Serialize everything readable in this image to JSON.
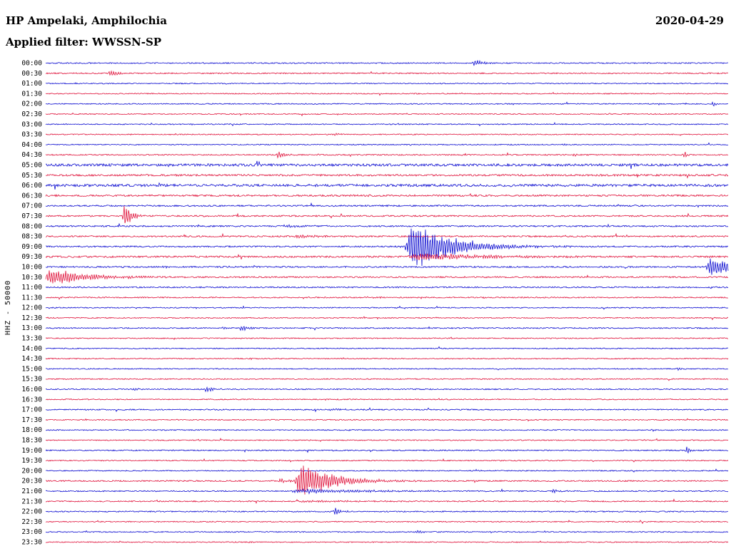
{
  "header": {
    "station_title": "HP Ampelaki, Amphilochia",
    "date": "2020-04-29",
    "filter_label": "Applied filter: WWSSN-SP"
  },
  "axis": {
    "left_label": "HHZ - 50000"
  },
  "chart_data": {
    "type": "line",
    "title": "HP Ampelaki, Amphilochia",
    "subtitle": "Applied filter: WWSSN-SP",
    "date": "2020-04-29",
    "ylabel": "HHZ - 50000",
    "row_minutes": 30,
    "row_count": 48,
    "legend": "alternating trace colors, one row per 30 minutes",
    "colors": {
      "blue": "#0b0bd0",
      "red": "#df1039",
      "labels": "#000000"
    },
    "rows": [
      {
        "t": "00:00",
        "noise": 0.8,
        "events": [
          [
            0.628,
            6,
            0.01
          ]
        ]
      },
      {
        "t": "00:30",
        "noise": 0.8,
        "events": [
          [
            0.095,
            5,
            0.01
          ]
        ]
      },
      {
        "t": "01:00",
        "noise": 0.7,
        "events": []
      },
      {
        "t": "01:30",
        "noise": 0.7,
        "events": []
      },
      {
        "t": "02:00",
        "noise": 0.7,
        "events": [
          [
            0.978,
            5,
            0.004
          ]
        ]
      },
      {
        "t": "02:30",
        "noise": 0.7,
        "events": []
      },
      {
        "t": "03:00",
        "noise": 0.7,
        "events": []
      },
      {
        "t": "03:30",
        "noise": 0.7,
        "events": [
          [
            0.425,
            2,
            0.006
          ]
        ]
      },
      {
        "t": "04:00",
        "noise": 0.7,
        "events": [
          [
            0.76,
            1.5,
            0.005
          ]
        ]
      },
      {
        "t": "04:30",
        "noise": 0.8,
        "events": [
          [
            0.341,
            5,
            0.01
          ],
          [
            0.775,
            2.5,
            0.004
          ],
          [
            0.937,
            6,
            0.003
          ]
        ]
      },
      {
        "t": "05:00",
        "noise": 1.7,
        "events": []
      },
      {
        "t": "05:30",
        "noise": 1.3,
        "events": []
      },
      {
        "t": "06:00",
        "noise": 1.7,
        "events": []
      },
      {
        "t": "06:30",
        "noise": 1.2,
        "events": []
      },
      {
        "t": "07:00",
        "noise": 1.0,
        "events": []
      },
      {
        "t": "07:30",
        "noise": 1.0,
        "events": [
          [
            0.116,
            22,
            0.009
          ]
        ]
      },
      {
        "t": "08:00",
        "noise": 1.0,
        "events": [
          [
            0.35,
            1.8,
            0.03
          ]
        ]
      },
      {
        "t": "08:30",
        "noise": 1.0,
        "events": [
          [
            0.37,
            2.2,
            0.04
          ]
        ]
      },
      {
        "t": "09:00",
        "noise": 1.0,
        "events": [
          [
            0.54,
            36,
            0.055
          ]
        ]
      },
      {
        "t": "09:30",
        "noise": 1.2,
        "events": [
          [
            0.55,
            5,
            0.09
          ]
        ]
      },
      {
        "t": "10:00",
        "noise": 1.0,
        "events": [
          [
            0.17,
            2,
            0.008
          ],
          [
            0.975,
            16,
            0.03
          ]
        ]
      },
      {
        "t": "10:30",
        "noise": 1.0,
        "events": [
          [
            0.01,
            13,
            0.05
          ]
        ]
      },
      {
        "t": "11:00",
        "noise": 0.9,
        "events": []
      },
      {
        "t": "11:30",
        "noise": 0.8,
        "events": [
          [
            0.47,
            1.5,
            0.02
          ]
        ]
      },
      {
        "t": "12:00",
        "noise": 0.7,
        "events": []
      },
      {
        "t": "12:30",
        "noise": 0.7,
        "events": [
          [
            0.487,
            2.2,
            0.004
          ]
        ]
      },
      {
        "t": "13:00",
        "noise": 0.8,
        "events": [
          [
            0.26,
            2.5,
            0.006
          ],
          [
            0.287,
            5,
            0.012
          ]
        ]
      },
      {
        "t": "13:30",
        "noise": 0.7,
        "events": []
      },
      {
        "t": "14:00",
        "noise": 0.7,
        "events": []
      },
      {
        "t": "14:30",
        "noise": 0.7,
        "events": [
          [
            0.3,
            1.3,
            0.006
          ]
        ]
      },
      {
        "t": "15:00",
        "noise": 0.7,
        "events": [
          [
            0.927,
            2.5,
            0.003
          ]
        ]
      },
      {
        "t": "15:30",
        "noise": 0.7,
        "events": []
      },
      {
        "t": "16:00",
        "noise": 0.8,
        "events": [
          [
            0.13,
            1.8,
            0.005
          ],
          [
            0.236,
            4,
            0.012
          ]
        ]
      },
      {
        "t": "16:30",
        "noise": 0.7,
        "events": []
      },
      {
        "t": "17:00",
        "noise": 0.8,
        "events": [
          [
            0.42,
            1.4,
            0.02
          ]
        ]
      },
      {
        "t": "17:30",
        "noise": 0.7,
        "events": []
      },
      {
        "t": "18:00",
        "noise": 0.7,
        "events": [
          [
            0.89,
            1.6,
            0.004
          ]
        ]
      },
      {
        "t": "18:30",
        "noise": 0.7,
        "events": []
      },
      {
        "t": "19:00",
        "noise": 0.8,
        "events": [
          [
            0.94,
            6,
            0.006
          ]
        ]
      },
      {
        "t": "19:30",
        "noise": 0.7,
        "events": []
      },
      {
        "t": "20:00",
        "noise": 0.7,
        "events": [
          [
            0.63,
            1.4,
            0.01
          ]
        ]
      },
      {
        "t": "20:30",
        "noise": 0.9,
        "events": [
          [
            0.345,
            4,
            0.008
          ],
          [
            0.375,
            26,
            0.045
          ]
        ]
      },
      {
        "t": "21:00",
        "noise": 0.8,
        "events": [
          [
            0.38,
            3,
            0.1
          ],
          [
            0.745,
            3,
            0.005
          ]
        ]
      },
      {
        "t": "21:30",
        "noise": 0.8,
        "events": [
          [
            0.38,
            1.5,
            0.08
          ]
        ]
      },
      {
        "t": "22:00",
        "noise": 0.8,
        "events": [
          [
            0.425,
            7,
            0.008
          ]
        ]
      },
      {
        "t": "22:30",
        "noise": 0.7,
        "events": []
      },
      {
        "t": "23:00",
        "noise": 0.7,
        "events": [
          [
            0.545,
            3,
            0.008
          ]
        ]
      },
      {
        "t": "23:30",
        "noise": 0.7,
        "events": [
          [
            0.3,
            1.2,
            0.01
          ]
        ]
      }
    ]
  }
}
